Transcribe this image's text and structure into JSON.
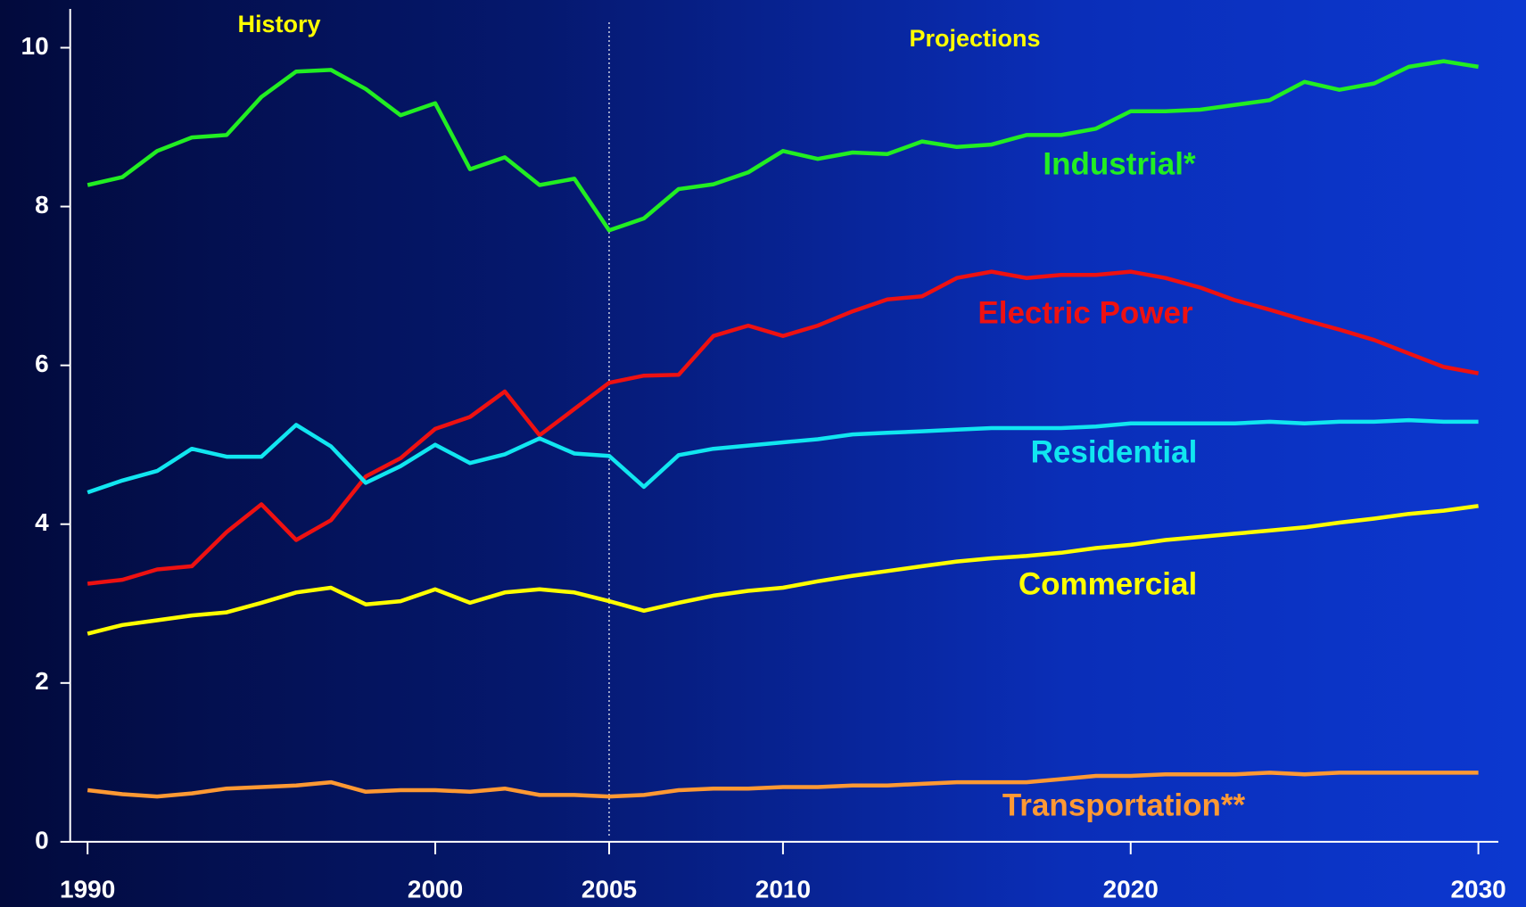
{
  "chart_data": {
    "type": "line",
    "annotations": [
      "History",
      "Projections"
    ],
    "divider": 2005,
    "x": [
      1990,
      1991,
      1992,
      1993,
      1994,
      1995,
      1996,
      1997,
      1998,
      1999,
      2000,
      2001,
      2002,
      2003,
      2004,
      2005,
      2006,
      2007,
      2008,
      2009,
      2010,
      2011,
      2012,
      2013,
      2014,
      2015,
      2016,
      2017,
      2018,
      2019,
      2020,
      2021,
      2022,
      2023,
      2024,
      2025,
      2026,
      2027,
      2028,
      2029,
      2030
    ],
    "xlim": [
      1989.5,
      2030.5
    ],
    "xticks": [
      1990,
      2000,
      2005,
      2010,
      2020,
      2030
    ],
    "ylim": [
      0,
      10
    ],
    "yticks": [
      0,
      2,
      4,
      6,
      8,
      10
    ],
    "series": [
      {
        "name": "Industrial*",
        "color": "#22ee22",
        "values": [
          8.27,
          8.37,
          8.7,
          8.87,
          8.9,
          9.38,
          9.7,
          9.72,
          9.48,
          9.15,
          9.3,
          8.47,
          8.62,
          8.27,
          8.35,
          7.7,
          7.85,
          8.22,
          8.28,
          8.43,
          8.7,
          8.6,
          8.68,
          8.66,
          8.82,
          8.75,
          8.78,
          8.9,
          8.9,
          8.98,
          9.2,
          9.2,
          9.22,
          9.28,
          9.34,
          9.57,
          9.47,
          9.55,
          9.76,
          9.83,
          9.76
        ]
      },
      {
        "name": "Electric Power",
        "color": "#ee1111",
        "values": [
          3.25,
          3.3,
          3.43,
          3.47,
          3.9,
          4.25,
          3.8,
          4.05,
          4.6,
          4.83,
          5.2,
          5.35,
          5.67,
          5.12,
          5.45,
          5.78,
          5.87,
          5.88,
          6.37,
          6.5,
          6.37,
          6.5,
          6.68,
          6.83,
          6.87,
          7.1,
          7.18,
          7.1,
          7.14,
          7.14,
          7.18,
          7.1,
          6.98,
          6.82,
          6.7,
          6.57,
          6.45,
          6.32,
          6.15,
          5.98,
          5.9
        ]
      },
      {
        "name": "Residential",
        "color": "#11e6f0",
        "values": [
          4.4,
          4.55,
          4.67,
          4.95,
          4.85,
          4.85,
          5.25,
          4.98,
          4.52,
          4.73,
          5.0,
          4.77,
          4.88,
          5.08,
          4.89,
          4.86,
          4.47,
          4.87,
          4.95,
          4.99,
          5.03,
          5.07,
          5.13,
          5.15,
          5.17,
          5.19,
          5.21,
          5.21,
          5.21,
          5.23,
          5.27,
          5.27,
          5.27,
          5.27,
          5.29,
          5.27,
          5.29,
          5.29,
          5.31,
          5.29,
          5.29
        ]
      },
      {
        "name": "Commercial",
        "color": "#ffff00",
        "values": [
          2.62,
          2.73,
          2.79,
          2.85,
          2.89,
          3.01,
          3.14,
          3.2,
          2.99,
          3.03,
          3.18,
          3.01,
          3.14,
          3.18,
          3.14,
          3.03,
          2.91,
          3.01,
          3.1,
          3.16,
          3.2,
          3.28,
          3.35,
          3.41,
          3.47,
          3.53,
          3.57,
          3.6,
          3.64,
          3.7,
          3.74,
          3.8,
          3.84,
          3.88,
          3.92,
          3.96,
          4.02,
          4.07,
          4.13,
          4.17,
          4.23
        ]
      },
      {
        "name": "Transportation**",
        "color": "#ff9933",
        "values": [
          0.65,
          0.6,
          0.57,
          0.61,
          0.67,
          0.69,
          0.71,
          0.75,
          0.63,
          0.65,
          0.65,
          0.63,
          0.67,
          0.59,
          0.59,
          0.57,
          0.59,
          0.65,
          0.67,
          0.67,
          0.69,
          0.69,
          0.71,
          0.71,
          0.73,
          0.75,
          0.75,
          0.75,
          0.79,
          0.83,
          0.83,
          0.85,
          0.85,
          0.85,
          0.87,
          0.85,
          0.87,
          0.87,
          0.87,
          0.87,
          0.87
        ]
      }
    ]
  }
}
